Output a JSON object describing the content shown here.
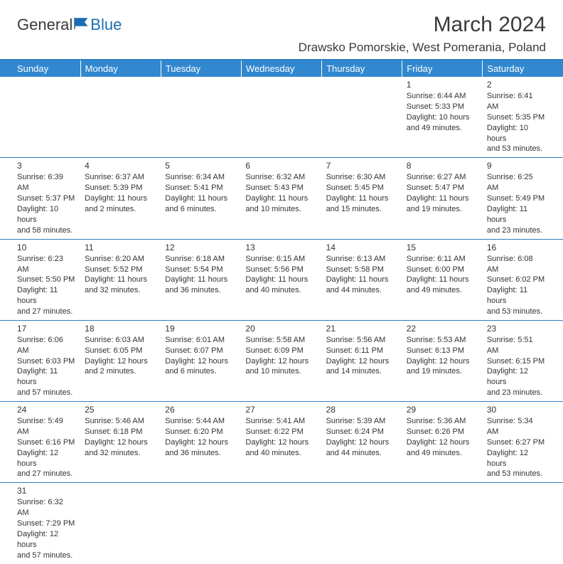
{
  "logo": {
    "text_part1": "General",
    "text_part2": "Blue"
  },
  "header": {
    "month_year": "March 2024",
    "location": "Drawsko Pomorskie, West Pomerania, Poland"
  },
  "day_headers": [
    "Sunday",
    "Monday",
    "Tuesday",
    "Wednesday",
    "Thursday",
    "Friday",
    "Saturday"
  ],
  "colors": {
    "header_bg": "#3188cf",
    "divider": "#2d7fc4",
    "text": "#333333",
    "logo_blue": "#1a6db3"
  },
  "weeks": [
    [
      null,
      null,
      null,
      null,
      null,
      {
        "n": "1",
        "sr": "Sunrise: 6:44 AM",
        "ss": "Sunset: 5:33 PM",
        "d1": "Daylight: 10 hours",
        "d2": "and 49 minutes."
      },
      {
        "n": "2",
        "sr": "Sunrise: 6:41 AM",
        "ss": "Sunset: 5:35 PM",
        "d1": "Daylight: 10 hours",
        "d2": "and 53 minutes."
      }
    ],
    [
      {
        "n": "3",
        "sr": "Sunrise: 6:39 AM",
        "ss": "Sunset: 5:37 PM",
        "d1": "Daylight: 10 hours",
        "d2": "and 58 minutes."
      },
      {
        "n": "4",
        "sr": "Sunrise: 6:37 AM",
        "ss": "Sunset: 5:39 PM",
        "d1": "Daylight: 11 hours",
        "d2": "and 2 minutes."
      },
      {
        "n": "5",
        "sr": "Sunrise: 6:34 AM",
        "ss": "Sunset: 5:41 PM",
        "d1": "Daylight: 11 hours",
        "d2": "and 6 minutes."
      },
      {
        "n": "6",
        "sr": "Sunrise: 6:32 AM",
        "ss": "Sunset: 5:43 PM",
        "d1": "Daylight: 11 hours",
        "d2": "and 10 minutes."
      },
      {
        "n": "7",
        "sr": "Sunrise: 6:30 AM",
        "ss": "Sunset: 5:45 PM",
        "d1": "Daylight: 11 hours",
        "d2": "and 15 minutes."
      },
      {
        "n": "8",
        "sr": "Sunrise: 6:27 AM",
        "ss": "Sunset: 5:47 PM",
        "d1": "Daylight: 11 hours",
        "d2": "and 19 minutes."
      },
      {
        "n": "9",
        "sr": "Sunrise: 6:25 AM",
        "ss": "Sunset: 5:49 PM",
        "d1": "Daylight: 11 hours",
        "d2": "and 23 minutes."
      }
    ],
    [
      {
        "n": "10",
        "sr": "Sunrise: 6:23 AM",
        "ss": "Sunset: 5:50 PM",
        "d1": "Daylight: 11 hours",
        "d2": "and 27 minutes."
      },
      {
        "n": "11",
        "sr": "Sunrise: 6:20 AM",
        "ss": "Sunset: 5:52 PM",
        "d1": "Daylight: 11 hours",
        "d2": "and 32 minutes."
      },
      {
        "n": "12",
        "sr": "Sunrise: 6:18 AM",
        "ss": "Sunset: 5:54 PM",
        "d1": "Daylight: 11 hours",
        "d2": "and 36 minutes."
      },
      {
        "n": "13",
        "sr": "Sunrise: 6:15 AM",
        "ss": "Sunset: 5:56 PM",
        "d1": "Daylight: 11 hours",
        "d2": "and 40 minutes."
      },
      {
        "n": "14",
        "sr": "Sunrise: 6:13 AM",
        "ss": "Sunset: 5:58 PM",
        "d1": "Daylight: 11 hours",
        "d2": "and 44 minutes."
      },
      {
        "n": "15",
        "sr": "Sunrise: 6:11 AM",
        "ss": "Sunset: 6:00 PM",
        "d1": "Daylight: 11 hours",
        "d2": "and 49 minutes."
      },
      {
        "n": "16",
        "sr": "Sunrise: 6:08 AM",
        "ss": "Sunset: 6:02 PM",
        "d1": "Daylight: 11 hours",
        "d2": "and 53 minutes."
      }
    ],
    [
      {
        "n": "17",
        "sr": "Sunrise: 6:06 AM",
        "ss": "Sunset: 6:03 PM",
        "d1": "Daylight: 11 hours",
        "d2": "and 57 minutes."
      },
      {
        "n": "18",
        "sr": "Sunrise: 6:03 AM",
        "ss": "Sunset: 6:05 PM",
        "d1": "Daylight: 12 hours",
        "d2": "and 2 minutes."
      },
      {
        "n": "19",
        "sr": "Sunrise: 6:01 AM",
        "ss": "Sunset: 6:07 PM",
        "d1": "Daylight: 12 hours",
        "d2": "and 6 minutes."
      },
      {
        "n": "20",
        "sr": "Sunrise: 5:58 AM",
        "ss": "Sunset: 6:09 PM",
        "d1": "Daylight: 12 hours",
        "d2": "and 10 minutes."
      },
      {
        "n": "21",
        "sr": "Sunrise: 5:56 AM",
        "ss": "Sunset: 6:11 PM",
        "d1": "Daylight: 12 hours",
        "d2": "and 14 minutes."
      },
      {
        "n": "22",
        "sr": "Sunrise: 5:53 AM",
        "ss": "Sunset: 6:13 PM",
        "d1": "Daylight: 12 hours",
        "d2": "and 19 minutes."
      },
      {
        "n": "23",
        "sr": "Sunrise: 5:51 AM",
        "ss": "Sunset: 6:15 PM",
        "d1": "Daylight: 12 hours",
        "d2": "and 23 minutes."
      }
    ],
    [
      {
        "n": "24",
        "sr": "Sunrise: 5:49 AM",
        "ss": "Sunset: 6:16 PM",
        "d1": "Daylight: 12 hours",
        "d2": "and 27 minutes."
      },
      {
        "n": "25",
        "sr": "Sunrise: 5:46 AM",
        "ss": "Sunset: 6:18 PM",
        "d1": "Daylight: 12 hours",
        "d2": "and 32 minutes."
      },
      {
        "n": "26",
        "sr": "Sunrise: 5:44 AM",
        "ss": "Sunset: 6:20 PM",
        "d1": "Daylight: 12 hours",
        "d2": "and 36 minutes."
      },
      {
        "n": "27",
        "sr": "Sunrise: 5:41 AM",
        "ss": "Sunset: 6:22 PM",
        "d1": "Daylight: 12 hours",
        "d2": "and 40 minutes."
      },
      {
        "n": "28",
        "sr": "Sunrise: 5:39 AM",
        "ss": "Sunset: 6:24 PM",
        "d1": "Daylight: 12 hours",
        "d2": "and 44 minutes."
      },
      {
        "n": "29",
        "sr": "Sunrise: 5:36 AM",
        "ss": "Sunset: 6:26 PM",
        "d1": "Daylight: 12 hours",
        "d2": "and 49 minutes."
      },
      {
        "n": "30",
        "sr": "Sunrise: 5:34 AM",
        "ss": "Sunset: 6:27 PM",
        "d1": "Daylight: 12 hours",
        "d2": "and 53 minutes."
      }
    ],
    [
      {
        "n": "31",
        "sr": "Sunrise: 6:32 AM",
        "ss": "Sunset: 7:29 PM",
        "d1": "Daylight: 12 hours",
        "d2": "and 57 minutes."
      },
      null,
      null,
      null,
      null,
      null,
      null
    ]
  ]
}
